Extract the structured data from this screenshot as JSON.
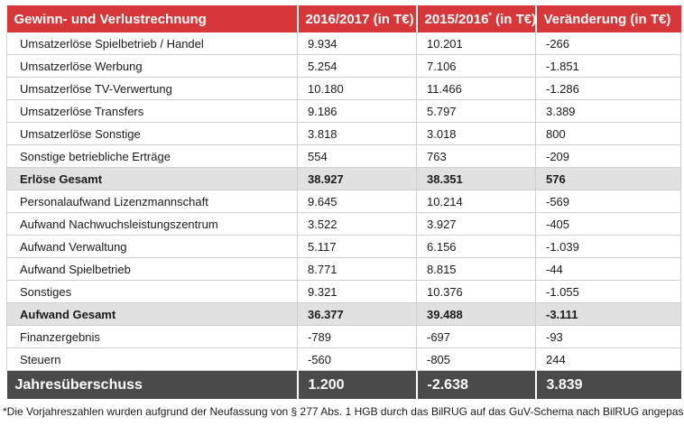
{
  "table": {
    "headers": [
      "Gewinn- und Verlustrechnung",
      "2016/2017 (in T€)",
      "2015/2016",
      "(in T€)",
      "Veränderung (in T€)"
    ],
    "header_footnote_mark": "*",
    "rows": [
      {
        "label": "Umsatzerlöse Spielbetrieb / Handel",
        "v2017": "9.934",
        "v2016": "10.201",
        "change": "-266",
        "total": false
      },
      {
        "label": "Umsatzerlöse Werbung",
        "v2017": "5.254",
        "v2016": "7.106",
        "change": "-1.851",
        "total": false
      },
      {
        "label": "Umsatzerlöse TV-Verwertung",
        "v2017": "10.180",
        "v2016": "11.466",
        "change": "-1.286",
        "total": false
      },
      {
        "label": "Umsatzerlöse Transfers",
        "v2017": "9.186",
        "v2016": "5.797",
        "change": "3.389",
        "total": false
      },
      {
        "label": "Umsatzerlöse Sonstige",
        "v2017": "3.818",
        "v2016": "3.018",
        "change": "800",
        "total": false
      },
      {
        "label": "Sonstige betriebliche Erträge",
        "v2017": "554",
        "v2016": "763",
        "change": "-209",
        "total": false
      },
      {
        "label": "Erlöse Gesamt",
        "v2017": "38.927",
        "v2016": "38.351",
        "change": "576",
        "total": true
      },
      {
        "label": "Personalaufwand Lizenzmannschaft",
        "v2017": "9.645",
        "v2016": "10.214",
        "change": "-569",
        "total": false
      },
      {
        "label": "Aufwand Nachwuchsleistungszentrum",
        "v2017": "3.522",
        "v2016": "3.927",
        "change": "-405",
        "total": false
      },
      {
        "label": "Aufwand Verwaltung",
        "v2017": "5.117",
        "v2016": "6.156",
        "change": "-1.039",
        "total": false
      },
      {
        "label": "Aufwand Spielbetrieb",
        "v2017": "8.771",
        "v2016": "8.815",
        "change": "-44",
        "total": false
      },
      {
        "label": "Sonstiges",
        "v2017": "9.321",
        "v2016": "10.376",
        "change": "-1.055",
        "total": false
      },
      {
        "label": "Aufwand Gesamt",
        "v2017": "36.377",
        "v2016": "39.488",
        "change": "-3.111",
        "total": true
      },
      {
        "label": "Finanzergebnis",
        "v2017": "-789",
        "v2016": "-697",
        "change": "-93",
        "total": false
      },
      {
        "label": "Steuern",
        "v2017": "-560",
        "v2016": "-805",
        "change": "244",
        "total": false
      }
    ],
    "final_row": {
      "label": "Jahresüberschuss",
      "v2017": "1.200",
      "v2016": "-2.638",
      "change": "3.839"
    }
  },
  "footnote": "*Die Vorjahreszahlen wurden aufgrund der Neufassung von § 277 Abs. 1 HGB durch das BilRUG auf das GuV-Schema nach BilRUG angepasst.",
  "colors": {
    "header_red": "#d8373a",
    "total_gray": "#e1e1e1",
    "final_dark": "#4a4a4a"
  }
}
